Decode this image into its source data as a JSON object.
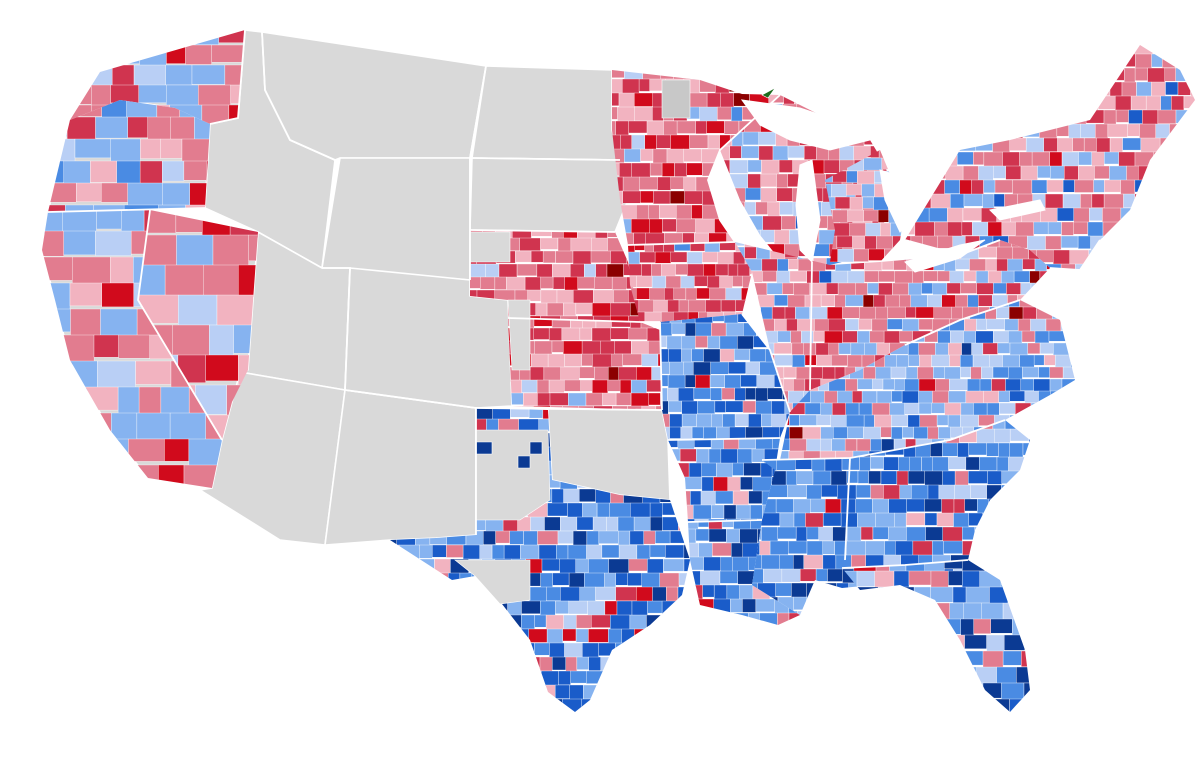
{
  "map": {
    "colors": {
      "no_data": "#d9d9d9",
      "no_data_dark": "#c8c8c8",
      "background": "#ffffff",
      "state_border": "#ffffff",
      "red_scale": [
        "#f2b3c0",
        "#e27c8f",
        "#d0344f",
        "#d10a1c",
        "#8b0000"
      ],
      "blue_scale": [
        "#b9cff5",
        "#86b3f0",
        "#4a8be3",
        "#1a5cc9",
        "#0b3a93"
      ],
      "special_green": "#1d6b1d"
    },
    "regions": [
      {
        "name": "washington",
        "scheme": "mixed-west"
      },
      {
        "name": "oregon",
        "scheme": "mixed-west"
      },
      {
        "name": "california",
        "scheme": "mixed-west"
      },
      {
        "name": "nevada",
        "scheme": "mixed-west"
      },
      {
        "name": "idaho",
        "scheme": "no-data"
      },
      {
        "name": "montana",
        "scheme": "no-data"
      },
      {
        "name": "wyoming",
        "scheme": "no-data"
      },
      {
        "name": "utah",
        "scheme": "no-data"
      },
      {
        "name": "arizona",
        "scheme": "no-data"
      },
      {
        "name": "new-mexico",
        "scheme": "no-data"
      },
      {
        "name": "colorado",
        "scheme": "no-data"
      },
      {
        "name": "north-dakota",
        "scheme": "no-data"
      },
      {
        "name": "south-dakota",
        "scheme": "no-data"
      },
      {
        "name": "nebraska",
        "scheme": "red"
      },
      {
        "name": "kansas",
        "scheme": "red"
      },
      {
        "name": "oklahoma",
        "scheme": "no-data"
      },
      {
        "name": "texas",
        "scheme": "blue"
      },
      {
        "name": "minnesota",
        "scheme": "red"
      },
      {
        "name": "iowa",
        "scheme": "red"
      },
      {
        "name": "missouri",
        "scheme": "blue"
      },
      {
        "name": "arkansas",
        "scheme": "blue"
      },
      {
        "name": "louisiana",
        "scheme": "blue"
      },
      {
        "name": "wisconsin",
        "scheme": "mixed-red"
      },
      {
        "name": "michigan",
        "scheme": "mixed-red"
      },
      {
        "name": "illinois",
        "scheme": "mixed-red"
      },
      {
        "name": "indiana",
        "scheme": "mixed-red"
      },
      {
        "name": "ohio",
        "scheme": "mixed-red"
      },
      {
        "name": "kentucky",
        "scheme": "mixed-blue"
      },
      {
        "name": "tennessee",
        "scheme": "blue"
      },
      {
        "name": "mississippi",
        "scheme": "blue"
      },
      {
        "name": "alabama",
        "scheme": "blue"
      },
      {
        "name": "georgia",
        "scheme": "blue"
      },
      {
        "name": "florida",
        "scheme": "blue"
      },
      {
        "name": "south-carolina",
        "scheme": "blue"
      },
      {
        "name": "north-carolina",
        "scheme": "blue"
      },
      {
        "name": "virginia",
        "scheme": "mixed-blue"
      },
      {
        "name": "west-virginia",
        "scheme": "mixed-blue"
      },
      {
        "name": "pennsylvania",
        "scheme": "mixed-red"
      },
      {
        "name": "new-york",
        "scheme": "mixed-red"
      },
      {
        "name": "new-england",
        "scheme": "red"
      }
    ]
  }
}
